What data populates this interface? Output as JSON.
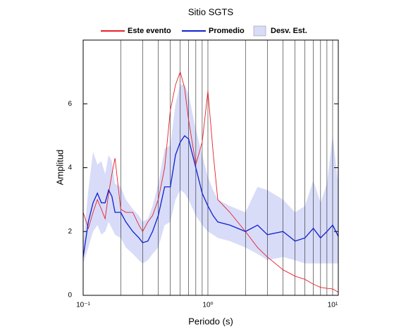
{
  "chart_data": {
    "type": "line",
    "title": "Sitio SGTS",
    "x_label": "Periodo (s)",
    "y_label": "Amplitud",
    "x_log": true,
    "grid": true,
    "xlim": [
      0.1,
      11.1
    ],
    "ylim": [
      0,
      8
    ],
    "xticks": [
      {
        "value": 0.1,
        "label": "10⁻¹"
      },
      {
        "value": 1,
        "label": "10⁰"
      },
      {
        "value": 10,
        "label": "10¹"
      }
    ],
    "x_minor_grid": [
      0.2,
      0.3,
      0.4,
      0.5,
      0.6,
      0.7,
      0.8,
      0.9,
      2,
      3,
      4,
      5,
      6,
      7,
      8,
      9
    ],
    "yticks": [
      0,
      2,
      4,
      6
    ],
    "x": [
      0.1,
      0.11,
      0.12,
      0.13,
      0.14,
      0.15,
      0.16,
      0.17,
      0.18,
      0.2,
      0.22,
      0.25,
      0.28,
      0.3,
      0.33,
      0.36,
      0.4,
      0.45,
      0.5,
      0.55,
      0.6,
      0.65,
      0.7,
      0.8,
      0.9,
      1.0,
      1.1,
      1.2,
      1.5,
      2,
      2.5,
      3,
      4,
      5,
      6,
      7,
      8,
      9,
      10,
      11.1
    ],
    "series": [
      {
        "name": "Este evento",
        "color": "#e8202a",
        "values": [
          2.6,
          2.1,
          2.6,
          3.0,
          2.7,
          2.4,
          3.2,
          3.8,
          4.3,
          2.7,
          2.6,
          2.6,
          2.2,
          2.0,
          2.3,
          2.5,
          3.0,
          4.0,
          5.8,
          6.6,
          7.0,
          6.5,
          5.5,
          4.1,
          4.8,
          6.4,
          4.5,
          3.0,
          2.6,
          2.0,
          1.5,
          1.2,
          0.8,
          0.6,
          0.5,
          0.35,
          0.25,
          0.22,
          0.2,
          0.1
        ]
      },
      {
        "name": "Promedio",
        "color": "#1020d0",
        "values": [
          1.2,
          2.3,
          2.9,
          3.2,
          2.9,
          2.9,
          3.3,
          3.1,
          2.6,
          2.6,
          2.3,
          2.0,
          1.8,
          1.65,
          1.7,
          2.0,
          2.5,
          3.4,
          3.4,
          4.4,
          4.8,
          5.0,
          4.9,
          4.0,
          3.2,
          2.8,
          2.5,
          2.3,
          2.2,
          2.0,
          2.2,
          1.9,
          2.0,
          1.7,
          1.8,
          2.1,
          1.8,
          2.0,
          2.2,
          1.85
        ]
      }
    ],
    "band": {
      "name": "Desv. Est.",
      "color": "#d8dcf8",
      "lower": [
        1.0,
        1.5,
        2.0,
        2.2,
        1.9,
        2.0,
        2.3,
        2.1,
        1.9,
        1.8,
        1.5,
        1.3,
        1.1,
        1.0,
        1.1,
        1.3,
        1.5,
        2.2,
        2.3,
        3.0,
        3.3,
        3.2,
        3.0,
        2.5,
        2.2,
        2.0,
        1.9,
        1.8,
        1.7,
        1.5,
        1.3,
        1.1,
        1.2,
        1.1,
        1.0,
        1.0,
        1.0,
        1.0,
        1.0,
        1.0
      ],
      "upper": [
        1.6,
        3.3,
        4.5,
        4.1,
        4.2,
        3.8,
        4.4,
        4.2,
        3.5,
        3.4,
        3.0,
        2.7,
        2.5,
        2.3,
        2.4,
        2.8,
        3.5,
        4.6,
        4.7,
        6.0,
        6.6,
        6.6,
        6.3,
        5.2,
        4.4,
        3.7,
        3.3,
        3.0,
        2.8,
        2.6,
        3.4,
        3.3,
        3.0,
        2.6,
        2.8,
        3.6,
        2.9,
        3.5,
        5.0,
        3.5
      ]
    }
  }
}
